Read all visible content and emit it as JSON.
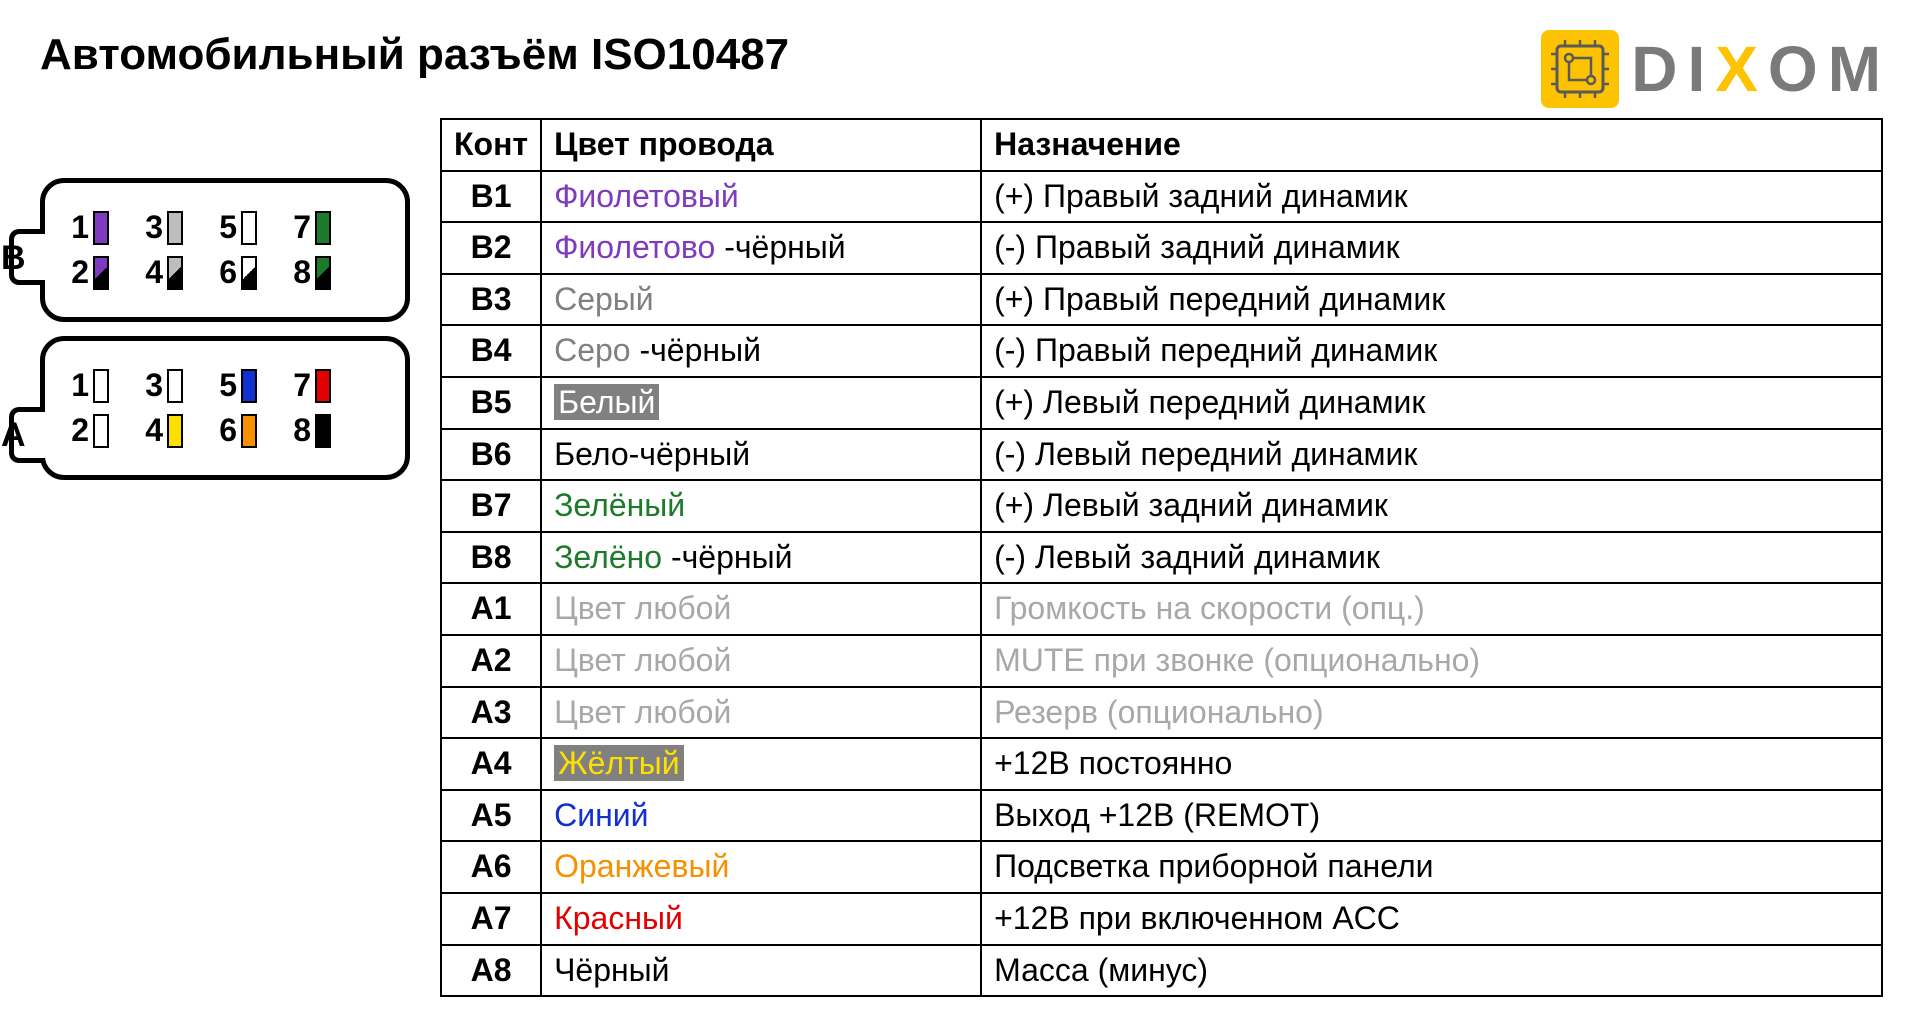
{
  "title": "Автомобильный разъём ISO10487",
  "logo": {
    "text": "DIXOM",
    "icon_bg": "#fdc200",
    "gray": "#7a7a7a",
    "accent": "#fdc200"
  },
  "connector": {
    "blocks": [
      {
        "label": "B",
        "rows": [
          [
            {
              "num": "1",
              "fill": "#7e3bbf",
              "split": null
            },
            {
              "num": "3",
              "fill": "#bdbdbd",
              "split": null
            },
            {
              "num": "5",
              "fill": "#ffffff",
              "split": null
            },
            {
              "num": "7",
              "fill": "#1d7a2a",
              "split": null
            }
          ],
          [
            {
              "num": "2",
              "fill": null,
              "split": [
                "#7e3bbf",
                "#000000"
              ]
            },
            {
              "num": "4",
              "fill": null,
              "split": [
                "#bdbdbd",
                "#000000"
              ]
            },
            {
              "num": "6",
              "fill": null,
              "split": [
                "#ffffff",
                "#000000"
              ]
            },
            {
              "num": "8",
              "fill": null,
              "split": [
                "#1d7a2a",
                "#000000"
              ]
            }
          ]
        ]
      },
      {
        "label": "A",
        "rows": [
          [
            {
              "num": "1",
              "fill": "#ffffff",
              "split": null
            },
            {
              "num": "3",
              "fill": "#ffffff",
              "split": null
            },
            {
              "num": "5",
              "fill": "#1030d0",
              "split": null
            },
            {
              "num": "7",
              "fill": "#e40000",
              "split": null
            }
          ],
          [
            {
              "num": "2",
              "fill": "#ffffff",
              "split": null
            },
            {
              "num": "4",
              "fill": "#fee000",
              "split": null
            },
            {
              "num": "6",
              "fill": "#f59000",
              "split": null
            },
            {
              "num": "8",
              "fill": "#000000",
              "split": null
            }
          ]
        ]
      }
    ]
  },
  "table": {
    "headers": {
      "pin": "Конт",
      "color": "Цвет провода",
      "purpose": "Назначение"
    },
    "col_widths": {
      "pin": "100px",
      "color": "440px",
      "purpose": "auto"
    },
    "rows": [
      {
        "pin": "B1",
        "color_parts": [
          {
            "t": "Фиолетовый",
            "c": "#7e3bbf"
          }
        ],
        "purpose": "(+) Правый задний динамик",
        "muted": false
      },
      {
        "pin": "B2",
        "color_parts": [
          {
            "t": "Фиолетово",
            "c": "#7e3bbf"
          },
          {
            "t": " -чёрный",
            "c": "#000000"
          }
        ],
        "purpose": "(-)  Правый задний динамик",
        "muted": false
      },
      {
        "pin": "B3",
        "color_parts": [
          {
            "t": "Серый",
            "c": "#808080"
          }
        ],
        "purpose": "(+) Правый передний динамик",
        "muted": false
      },
      {
        "pin": "B4",
        "color_parts": [
          {
            "t": "Серо",
            "c": "#808080"
          },
          {
            "t": " -чёрный",
            "c": "#000000"
          }
        ],
        "purpose": "(-)  Правый передний динамик",
        "muted": false
      },
      {
        "pin": "B5",
        "color_parts": [
          {
            "t": "Белый",
            "c": "#ffffff",
            "hl": "gray"
          }
        ],
        "purpose": "(+) Левый передний динамик",
        "muted": false
      },
      {
        "pin": "B6",
        "color_parts": [
          {
            "t": "Бело",
            "c": "#000000"
          },
          {
            "t": "-чёрный",
            "c": "#000000"
          }
        ],
        "purpose": "(-)  Левый передний динамик",
        "muted": false
      },
      {
        "pin": "B7",
        "color_parts": [
          {
            "t": "Зелёный",
            "c": "#1d7a2a"
          }
        ],
        "purpose": "(+) Левый задний динамик",
        "muted": false
      },
      {
        "pin": "B8",
        "color_parts": [
          {
            "t": "Зелёно",
            "c": "#1d7a2a"
          },
          {
            "t": " -чёрный",
            "c": "#000000"
          }
        ],
        "purpose": "(-)  Левый задний динамик",
        "muted": false
      },
      {
        "pin": "A1",
        "color_parts": [
          {
            "t": "Цвет любой",
            "c": "#a8a8a8"
          }
        ],
        "purpose": "Громкость на скорости (опц.)",
        "muted": true
      },
      {
        "pin": "A2",
        "color_parts": [
          {
            "t": "Цвет любой",
            "c": "#a8a8a8"
          }
        ],
        "purpose": "MUTE при звонке (опционально)",
        "muted": true
      },
      {
        "pin": "A3",
        "color_parts": [
          {
            "t": "Цвет любой",
            "c": "#a8a8a8"
          }
        ],
        "purpose": "Резерв (опционально)",
        "muted": true
      },
      {
        "pin": "A4",
        "color_parts": [
          {
            "t": "Жёлтый",
            "c": "#fee000",
            "hl": "gray"
          }
        ],
        "purpose": "+12В постоянно",
        "muted": false
      },
      {
        "pin": "A5",
        "color_parts": [
          {
            "t": "Синий",
            "c": "#1030d0"
          }
        ],
        "purpose": "Выход +12В (REMOT)",
        "muted": false
      },
      {
        "pin": "A6",
        "color_parts": [
          {
            "t": "Оранжевый",
            "c": "#f59000"
          }
        ],
        "purpose": "Подсветка приборной панели",
        "muted": false
      },
      {
        "pin": "A7",
        "color_parts": [
          {
            "t": "Красный",
            "c": "#e40000"
          }
        ],
        "purpose": "+12В при включенном ACC",
        "muted": false
      },
      {
        "pin": "A8",
        "color_parts": [
          {
            "t": "Чёрный",
            "c": "#000000"
          }
        ],
        "purpose": "Масса (минус)",
        "muted": false
      }
    ]
  },
  "styling": {
    "title_fontsize": 44,
    "table_fontsize": 32,
    "border_color": "#000000",
    "background": "#ffffff",
    "muted_color": "#a8a8a8",
    "highlight_bg": "#808080"
  }
}
